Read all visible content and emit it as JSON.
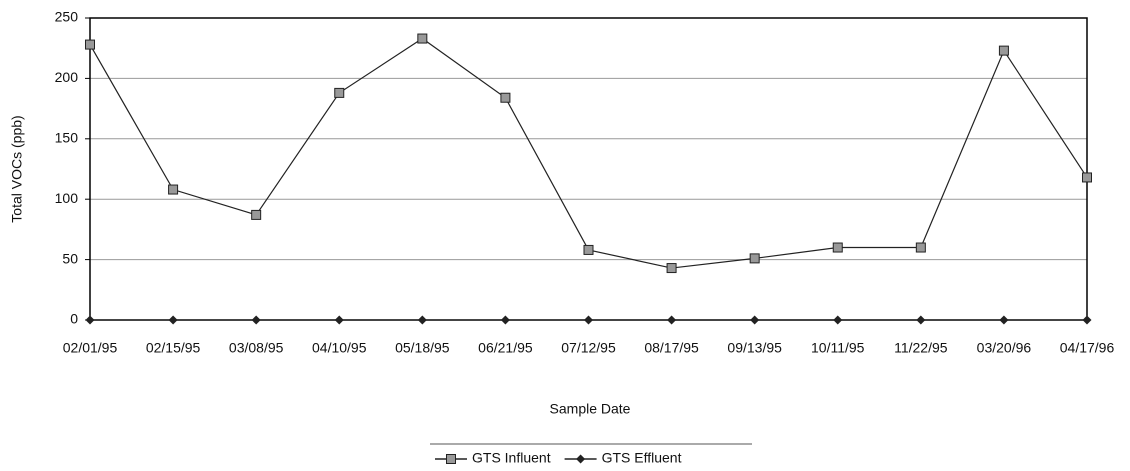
{
  "chart_data": {
    "type": "line",
    "x_label": "Sample Date",
    "y_label": "Total VOCs (ppb)",
    "categories": [
      "02/01/95",
      "02/15/95",
      "03/08/95",
      "04/10/95",
      "05/18/95",
      "06/21/95",
      "07/12/95",
      "08/17/95",
      "09/13/95",
      "10/11/95",
      "11/22/95",
      "03/20/96",
      "04/17/96"
    ],
    "series": [
      {
        "name": "GTS Influent",
        "color": "#222222",
        "marker": "square",
        "values": [
          228,
          108,
          87,
          188,
          233,
          184,
          58,
          43,
          51,
          60,
          60,
          223,
          118
        ]
      },
      {
        "name": "GTS Effluent",
        "color": "#222222",
        "marker": "diamond",
        "values": [
          0,
          0,
          0,
          0,
          0,
          0,
          0,
          0,
          0,
          0,
          0,
          0,
          0
        ]
      }
    ],
    "ylim": [
      0,
      250
    ],
    "yticks": [
      0,
      50,
      100,
      150,
      200,
      250
    ],
    "grid": true,
    "legend": "bottom"
  }
}
